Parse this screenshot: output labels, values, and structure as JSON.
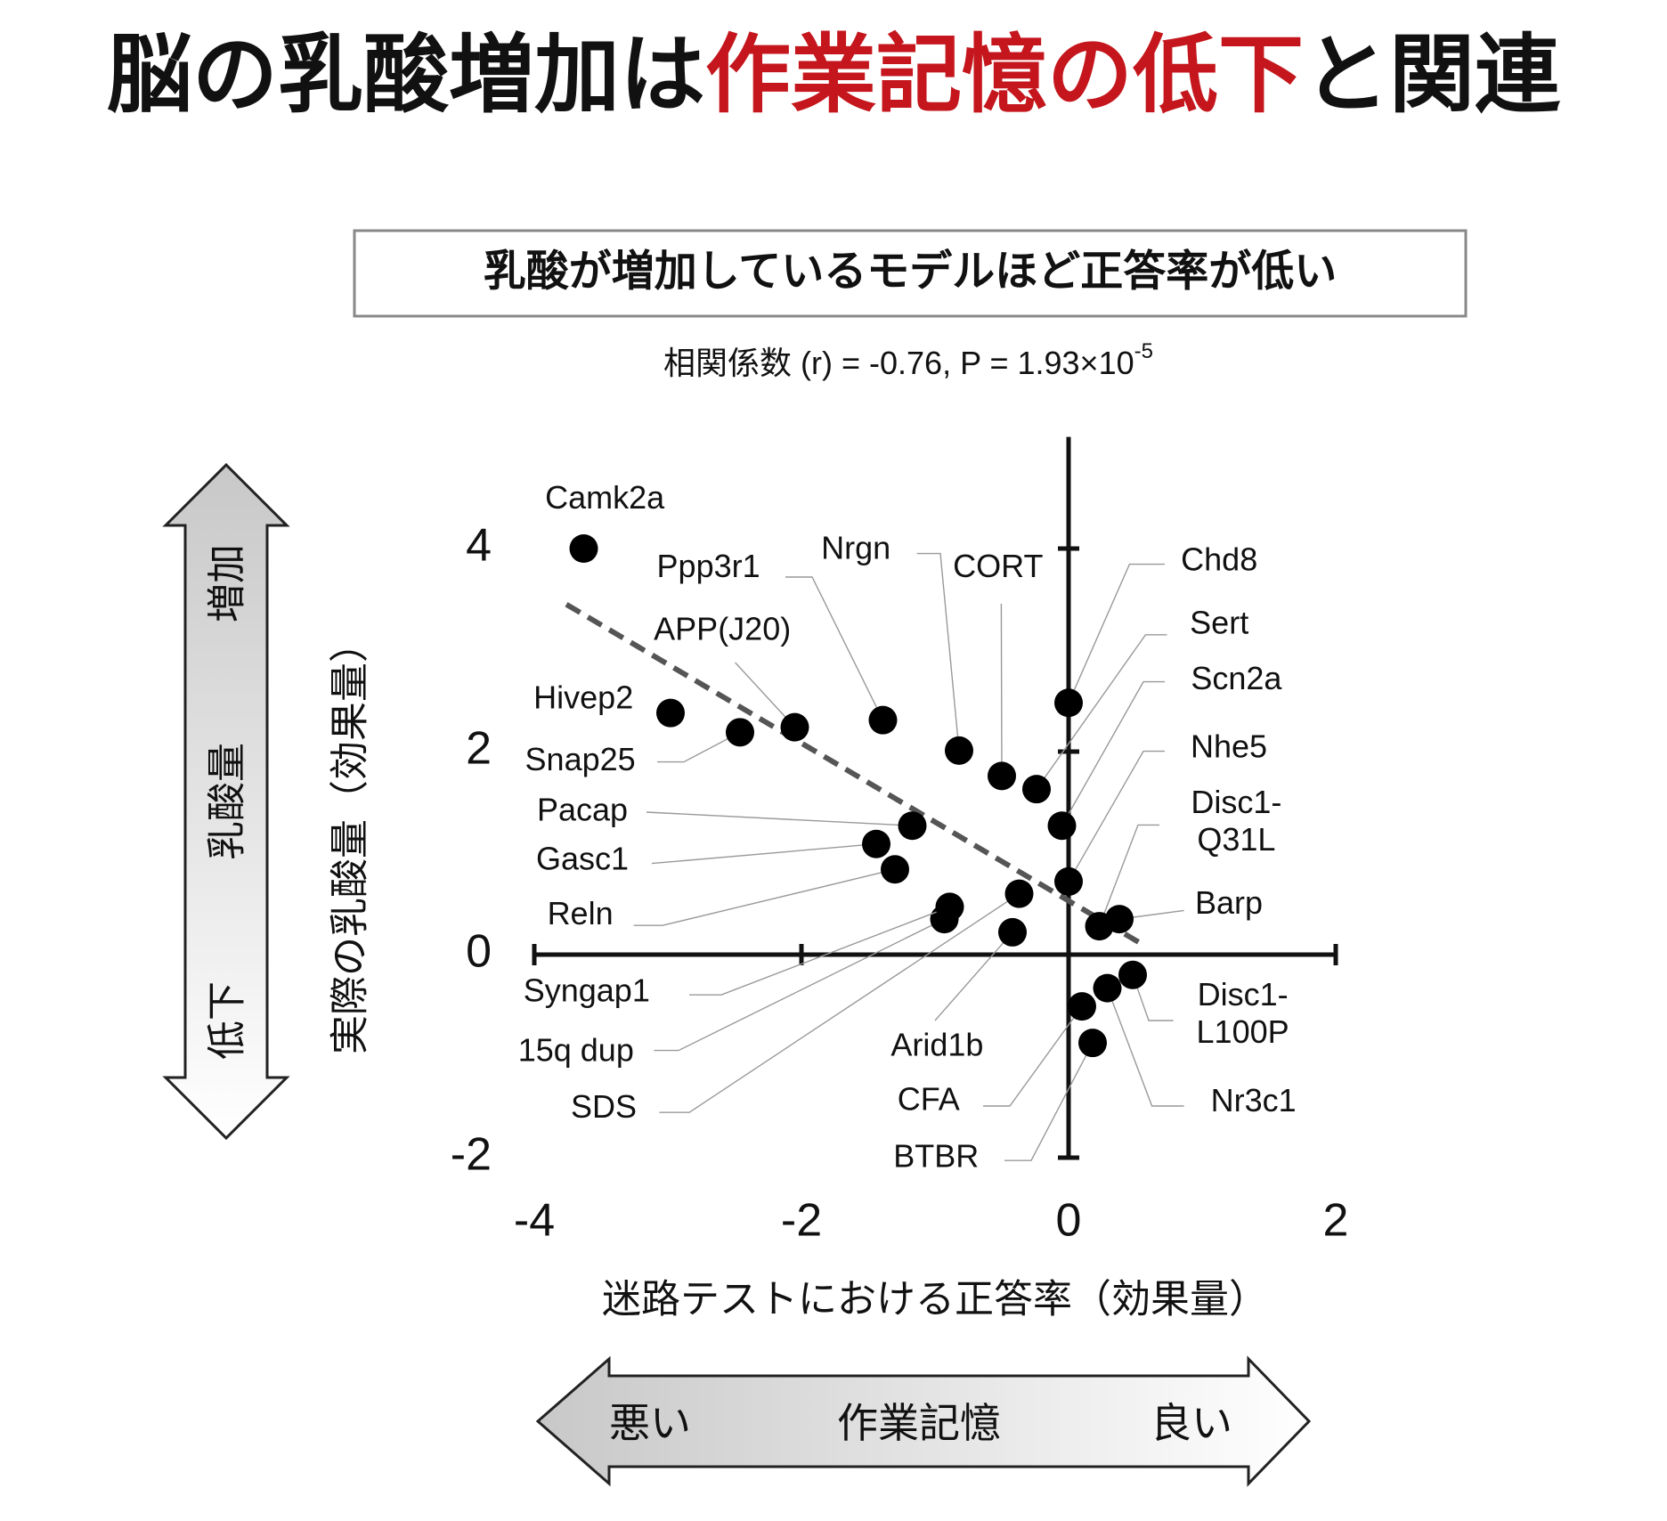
{
  "chart_data": {
    "type": "scatter",
    "title_parts": [
      {
        "text": "脳の乳酸増加は",
        "color": "#111111"
      },
      {
        "text": "作業記憶の低下",
        "color": "#c4161c"
      },
      {
        "text": "と関連",
        "color": "#111111"
      }
    ],
    "subtitle": "乳酸が増加しているモデルほど正答率が低い",
    "stat_text": "相関係数 (r) = -0.76, P = 1.93×10",
    "stat_exponent": "-5",
    "ylabel": "実際の乳酸量（効果量）",
    "xlabel": "迷路テストにおける正答率（効果量）",
    "y_arrow": {
      "top": "増加",
      "middle": "乳酸量",
      "bottom": "低下"
    },
    "x_arrow": {
      "left": "悪い",
      "middle": "作業記憶",
      "right": "良い"
    },
    "xlim": [
      -4,
      2
    ],
    "ylim": [
      -2,
      5.1
    ],
    "xticks": [
      -4,
      -2,
      0,
      2
    ],
    "yticks": [
      -2,
      0,
      2,
      4
    ],
    "color": "#000000",
    "trendline": {
      "x": [
        -3.76,
        0.58
      ],
      "y": [
        3.45,
        0.08
      ],
      "color": "#555555"
    },
    "points": [
      {
        "label": "Camk2a",
        "x": -3.63,
        "y": 4.0
      },
      {
        "label": "Hivep2",
        "x": -2.98,
        "y": 2.38
      },
      {
        "label": "Snap25",
        "x": -2.46,
        "y": 2.19
      },
      {
        "label": "APP(J20)",
        "x": -2.05,
        "y": 2.24
      },
      {
        "label": "Ppp3r1",
        "x": -1.39,
        "y": 2.31
      },
      {
        "label": "Nrgn",
        "x": -0.82,
        "y": 2.01
      },
      {
        "label": "CORT",
        "x": -0.5,
        "y": 1.76
      },
      {
        "label": "Chd8",
        "x": 0.0,
        "y": 2.48
      },
      {
        "label": "Sert",
        "x": -0.24,
        "y": 1.63
      },
      {
        "label": "Scn2a",
        "x": -0.05,
        "y": 1.27
      },
      {
        "label": "Nhe5",
        "x": 0.0,
        "y": 0.72
      },
      {
        "label": [
          "Disc1-",
          "Q31L"
        ],
        "x": 0.23,
        "y": 0.28
      },
      {
        "label": "Barp",
        "x": 0.38,
        "y": 0.35
      },
      {
        "label": [
          "Disc1-",
          "L100P"
        ],
        "x": 0.48,
        "y": -0.2
      },
      {
        "label": "Nr3c1",
        "x": 0.29,
        "y": -0.33
      },
      {
        "label": "BTBR",
        "x": 0.18,
        "y": -0.87
      },
      {
        "label": "CFA",
        "x": 0.1,
        "y": -0.51
      },
      {
        "label": "Arid1b",
        "x": -0.42,
        "y": 0.22
      },
      {
        "label": "SDS",
        "x": -0.37,
        "y": 0.6
      },
      {
        "label": "15q dup",
        "x": -0.93,
        "y": 0.35
      },
      {
        "label": "Syngap1",
        "x": -0.89,
        "y": 0.47
      },
      {
        "label": "Reln",
        "x": -1.3,
        "y": 0.84
      },
      {
        "label": "Gasc1",
        "x": -1.44,
        "y": 1.09
      },
      {
        "label": "Pacap",
        "x": -1.17,
        "y": 1.27
      }
    ]
  }
}
